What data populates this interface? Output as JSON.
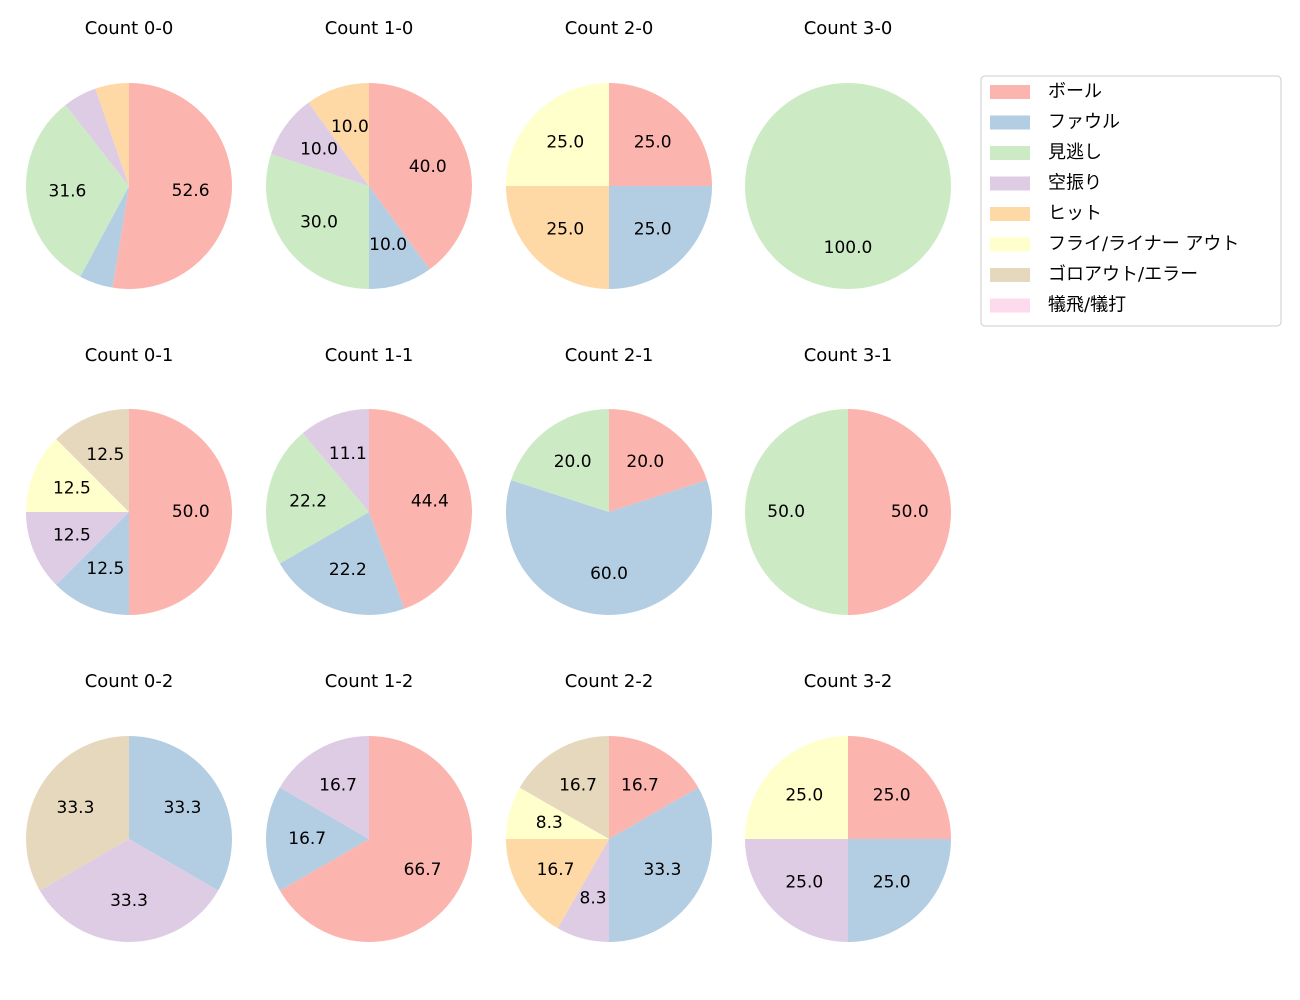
{
  "chart_data": [
    {
      "type": "pie",
      "title": "Count 0-0",
      "values": [
        52.6,
        5.3,
        31.6,
        5.3,
        5.3,
        null,
        null,
        null
      ],
      "value_labels": [
        "52.6",
        null,
        "31.6",
        null,
        null,
        null,
        null,
        null
      ]
    },
    {
      "type": "pie",
      "title": "Count 1-0",
      "values": [
        40,
        10,
        30,
        10,
        10,
        null,
        null,
        null
      ],
      "value_labels": [
        "40.0",
        "10.0",
        "30.0",
        "10.0",
        "10.0",
        null,
        null,
        null
      ]
    },
    {
      "type": "pie",
      "title": "Count 2-0",
      "values": [
        25,
        25,
        null,
        null,
        25,
        25,
        null,
        null
      ],
      "value_labels": [
        "25.0",
        "25.0",
        null,
        null,
        "25.0",
        "25.0",
        null,
        null
      ]
    },
    {
      "type": "pie",
      "title": "Count 3-0",
      "values": [
        null,
        null,
        100,
        null,
        null,
        null,
        null,
        null
      ],
      "value_labels": [
        null,
        null,
        "100.0",
        null,
        null,
        null,
        null,
        null
      ]
    },
    {
      "type": "pie",
      "title": "Count 0-1",
      "values": [
        50,
        12.5,
        null,
        12.5,
        null,
        12.5,
        12.5,
        null
      ],
      "value_labels": [
        "50.0",
        "12.5",
        null,
        "12.5",
        null,
        "12.5",
        "12.5",
        null
      ]
    },
    {
      "type": "pie",
      "title": "Count 1-1",
      "values": [
        44.4,
        22.2,
        22.2,
        11.1,
        null,
        null,
        null,
        null
      ],
      "value_labels": [
        "44.4",
        "22.2",
        "22.2",
        "11.1",
        null,
        null,
        null,
        null
      ]
    },
    {
      "type": "pie",
      "title": "Count 2-1",
      "values": [
        20,
        60,
        20,
        null,
        null,
        null,
        null,
        null
      ],
      "value_labels": [
        "20.0",
        "60.0",
        "20.0",
        null,
        null,
        null,
        null,
        null
      ]
    },
    {
      "type": "pie",
      "title": "Count 3-1",
      "values": [
        50,
        null,
        50,
        null,
        null,
        null,
        null,
        null
      ],
      "value_labels": [
        "50.0",
        null,
        "50.0",
        null,
        null,
        null,
        null,
        null
      ]
    },
    {
      "type": "pie",
      "title": "Count 0-2",
      "values": [
        null,
        33.3,
        null,
        33.3,
        null,
        null,
        33.3,
        null
      ],
      "value_labels": [
        null,
        "33.3",
        null,
        "33.3",
        null,
        null,
        "33.3",
        null
      ]
    },
    {
      "type": "pie",
      "title": "Count 1-2",
      "values": [
        66.7,
        16.7,
        null,
        16.7,
        null,
        null,
        null,
        null
      ],
      "value_labels": [
        "66.7",
        "16.7",
        null,
        "16.7",
        null,
        null,
        null,
        null
      ]
    },
    {
      "type": "pie",
      "title": "Count 2-2",
      "values": [
        16.7,
        33.3,
        null,
        8.3,
        16.7,
        8.3,
        16.7,
        null
      ],
      "value_labels": [
        "16.7",
        "33.3",
        null,
        "8.3",
        "16.7",
        "8.3",
        "16.7",
        null
      ]
    },
    {
      "type": "pie",
      "title": "Count 3-2",
      "values": [
        25,
        25,
        null,
        25,
        null,
        25,
        null,
        null
      ],
      "value_labels": [
        "25.0",
        "25.0",
        null,
        "25.0",
        null,
        "25.0",
        null,
        null
      ]
    }
  ],
  "legend": {
    "labels": [
      "ボール",
      "ファウル",
      "見逃し",
      "空振り",
      "ヒット",
      "フライ/ライナー アウト",
      "ゴロアウト/エラー",
      "犠飛/犠打"
    ],
    "colors": [
      "#fbb4ae",
      "#b3cde3",
      "#ccebc5",
      "#decbe4",
      "#fed9a6",
      "#ffffcc",
      "#e5d8bd",
      "#fddaec"
    ]
  }
}
